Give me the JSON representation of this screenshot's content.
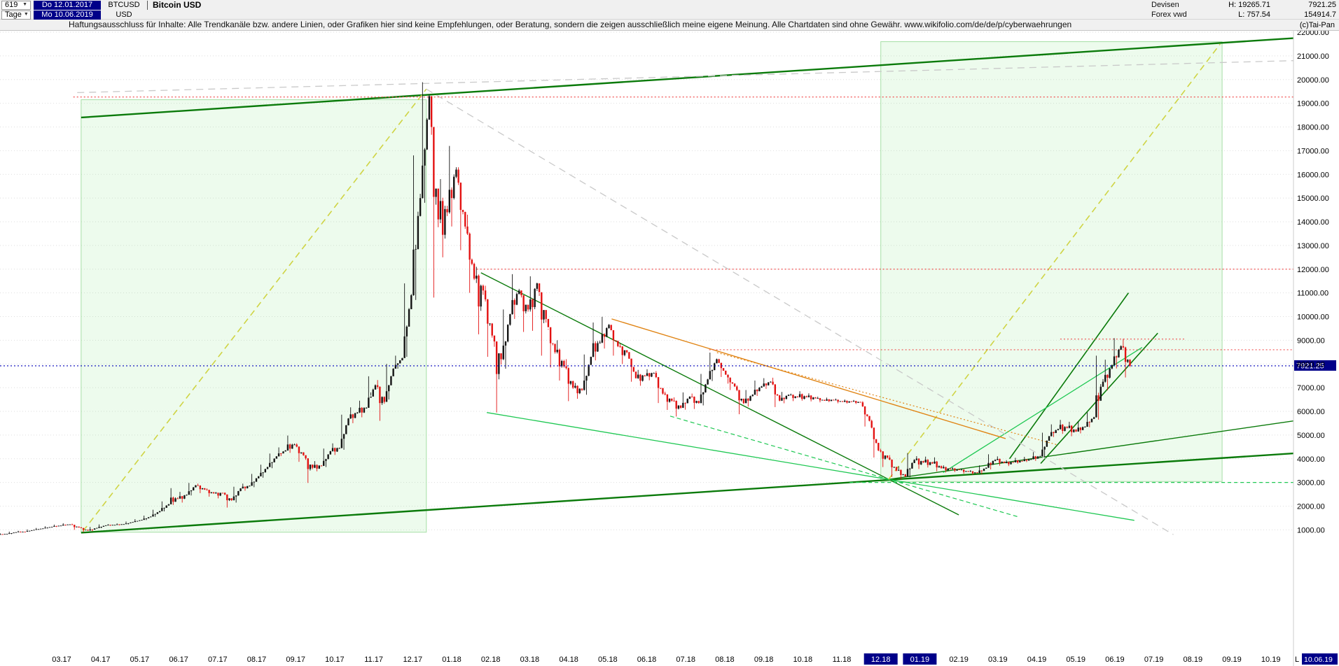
{
  "icons": {
    "dropdown_caret": "▼"
  },
  "header": {
    "bars_count": "619",
    "period": "Tage",
    "first_date": "Do 12.01.2017",
    "last_date": "Mo 10.06.2019",
    "symbol": "BTCUSD",
    "currency": "USD",
    "title": "Bitcoin USD",
    "category": "Devisen",
    "source": "Forex vwd",
    "high": "H: 19265.71",
    "low": "L: 757.54",
    "last_price": "7921.25",
    "turnover": "154914.7",
    "copyright": "(c)Tai-Pan"
  },
  "disclaimer": "Haftungsausschluss für Inhalte: Alle Trendkanäle bzw. andere Linien, oder Grafiken hier sind keine Empfehlungen, oder Beratung, sondern die zeigen ausschließlich meine eigene Meinung. Alle Chartdaten sind ohne Gewähr.  www.wikifolio.com/de/de/p/cyberwaehrungen",
  "bottom_right_marker": {
    "label": "L",
    "date": "10.06.19"
  },
  "chart_data": {
    "type": "candlestick",
    "title": "Bitcoin USD",
    "symbol": "BTCUSD",
    "timeframe": "Tage",
    "visible_bars": 619,
    "date_range": [
      "12.01.2017",
      "10.06.2019"
    ],
    "period_high": 19265.71,
    "period_low": 757.54,
    "last_price": 7921.25,
    "y_axis": {
      "min": 1000,
      "max": 22000,
      "step": 1000,
      "side": "right",
      "grid": true
    },
    "x_ticks": [
      "03.17",
      "04.17",
      "05.17",
      "06.17",
      "07.17",
      "08.17",
      "09.17",
      "10.17",
      "11.17",
      "12.17",
      "01.18",
      "02.18",
      "03.18",
      "04.18",
      "05.18",
      "06.18",
      "07.18",
      "08.18",
      "09.18",
      "10.18",
      "11.18",
      "12.18",
      "01.19",
      "02.19",
      "03.19",
      "04.19",
      "05.19",
      "06.19",
      "07.19",
      "08.19",
      "09.19",
      "10.19"
    ],
    "highlighted_x_ticks": [
      "12.18",
      "01.19"
    ],
    "colors": {
      "up": "#141414",
      "down": "#e31212",
      "last_price": "#0000bb",
      "badge_bg": "#000089",
      "badge_text": "#ffffff",
      "channel": "#0a7a0a",
      "bright_green": "#1fc853",
      "yellow_dashed": "#cfd444",
      "gray_dashed": "#c9c9c9",
      "orange": "#e08414",
      "red_dotted": "#f05050",
      "box_fill": "rgba(148,230,148,0.17)",
      "box_border": "#a6dfa6"
    },
    "weekly_series": {
      "m_start": 0.37,
      "m_step": 0.2303,
      "note": "m = months since 01.01.2017; entries [close, high, low] USD, weekly values estimated from chart",
      "bars": [
        [
          800,
          830,
          758
        ],
        [
          830,
          850,
          790
        ],
        [
          900,
          925,
          820
        ],
        [
          920,
          960,
          890
        ],
        [
          1000,
          1020,
          940
        ],
        [
          1060,
          1080,
          1010
        ],
        [
          1130,
          1150,
          1060
        ],
        [
          1180,
          1220,
          1120
        ],
        [
          1230,
          1280,
          1180
        ],
        [
          1100,
          1260,
          1000
        ],
        [
          970,
          1120,
          900
        ],
        [
          1080,
          1120,
          940
        ],
        [
          1190,
          1230,
          1070
        ],
        [
          1210,
          1240,
          1170
        ],
        [
          1240,
          1270,
          1190
        ],
        [
          1330,
          1350,
          1230
        ],
        [
          1420,
          1450,
          1350
        ],
        [
          1560,
          1600,
          1410
        ],
        [
          1790,
          1850,
          1550
        ],
        [
          2080,
          2200,
          1780
        ],
        [
          2320,
          2760,
          2050
        ],
        [
          2480,
          2600,
          2150
        ],
        [
          2880,
          2980,
          2450
        ],
        [
          2700,
          2950,
          2550
        ],
        [
          2540,
          2750,
          2400
        ],
        [
          2560,
          2600,
          2330
        ],
        [
          2250,
          2580,
          1940
        ],
        [
          2750,
          2820,
          2150
        ],
        [
          2860,
          2950,
          2650
        ],
        [
          3260,
          3360,
          2800
        ],
        [
          3650,
          3750,
          3200
        ],
        [
          4100,
          4220,
          3600
        ],
        [
          4350,
          4480,
          4110
        ],
        [
          4600,
          4980,
          4250
        ],
        [
          4150,
          4650,
          3870
        ],
        [
          3620,
          4120,
          2980
        ],
        [
          3700,
          3900,
          3470
        ],
        [
          4320,
          4430,
          3650
        ],
        [
          4450,
          4650,
          4160
        ],
        [
          5700,
          5860,
          4380
        ],
        [
          5950,
          6170,
          5500
        ],
        [
          6150,
          6450,
          5750
        ],
        [
          7100,
          7480,
          6800
        ],
        [
          6400,
          7320,
          5600
        ],
        [
          7800,
          8000,
          6500
        ],
        [
          8250,
          8350,
          7800
        ],
        [
          10900,
          11400,
          8300
        ],
        [
          15000,
          16800,
          10700
        ],
        [
          19300,
          19891,
          14800
        ],
        [
          14100,
          19300,
          10800
        ],
        [
          14400,
          15800,
          12500
        ],
        [
          16200,
          17200,
          13800
        ],
        [
          13800,
          16300,
          12800
        ],
        [
          11600,
          14300,
          11000
        ],
        [
          11100,
          12100,
          9250
        ],
        [
          9200,
          11300,
          8300
        ],
        [
          8200,
          9100,
          5950
        ],
        [
          10100,
          10300,
          7800
        ],
        [
          11100,
          11790,
          9900
        ],
        [
          10300,
          11100,
          9350
        ],
        [
          11400,
          11700,
          9400
        ],
        [
          9900,
          11000,
          8350
        ],
        [
          8500,
          9450,
          7850
        ],
        [
          7900,
          9000,
          7300
        ],
        [
          7000,
          8200,
          6430
        ],
        [
          6900,
          7200,
          6530
        ],
        [
          8300,
          8400,
          6700
        ],
        [
          8900,
          9750,
          8150
        ],
        [
          9650,
          9990,
          8650
        ],
        [
          8750,
          9400,
          8350
        ],
        [
          8500,
          8850,
          8000
        ],
        [
          7400,
          8500,
          7250
        ],
        [
          7500,
          7750,
          7080
        ],
        [
          7620,
          7780,
          7310
        ],
        [
          6750,
          7700,
          6350
        ],
        [
          6450,
          6830,
          6060
        ],
        [
          6150,
          6590,
          5780
        ],
        [
          6620,
          6800,
          6070
        ],
        [
          6350,
          6750,
          6100
        ],
        [
          7350,
          7580,
          6250
        ],
        [
          8200,
          8480,
          7280
        ],
        [
          7550,
          8220,
          7450
        ],
        [
          7050,
          7170,
          6900
        ],
        [
          6350,
          7100,
          5880
        ],
        [
          6700,
          6900,
          6200
        ],
        [
          7050,
          7300,
          6650
        ],
        [
          7250,
          7400,
          6950
        ],
        [
          6450,
          7420,
          6180
        ],
        [
          6700,
          6820,
          6340
        ],
        [
          6600,
          6750,
          6430
        ],
        [
          6600,
          6850,
          6450
        ],
        [
          6550,
          6760,
          6420
        ],
        [
          6450,
          6620,
          6380
        ],
        [
          6480,
          6580,
          6390
        ],
        [
          6400,
          6540,
          6340
        ],
        [
          6410,
          6500,
          6330
        ],
        [
          6380,
          6480,
          6310
        ],
        [
          5600,
          6430,
          5360
        ],
        [
          4350,
          5650,
          4050
        ],
        [
          4050,
          4420,
          3650
        ],
        [
          3500,
          4150,
          3230
        ],
        [
          3250,
          3680,
          3130
        ],
        [
          3950,
          4240,
          3220
        ],
        [
          3850,
          4110,
          3570
        ],
        [
          3800,
          4090,
          3630
        ],
        [
          3600,
          4060,
          3470
        ],
        [
          3560,
          3720,
          3420
        ],
        [
          3530,
          3640,
          3440
        ],
        [
          3450,
          3590,
          3370
        ],
        [
          3400,
          3520,
          3330
        ],
        [
          3620,
          3720,
          3350
        ],
        [
          3950,
          4190,
          3550
        ],
        [
          3820,
          4100,
          3710
        ],
        [
          3850,
          3940,
          3690
        ],
        [
          3900,
          4040,
          3790
        ],
        [
          3980,
          4080,
          3860
        ],
        [
          4100,
          4280,
          3910
        ],
        [
          4950,
          5100,
          4060
        ],
        [
          5250,
          5450,
          4920
        ],
        [
          5300,
          5640,
          5050
        ],
        [
          5150,
          5560,
          4950
        ],
        [
          5350,
          5580,
          5070
        ],
        [
          5750,
          5960,
          5330
        ],
        [
          7250,
          8350,
          5650
        ],
        [
          7950,
          8180,
          6890
        ],
        [
          8750,
          9090,
          7810
        ],
        [
          7921.25,
          9060,
          7430
        ]
      ]
    },
    "overlays": {
      "boxes": [
        {
          "m1": 2.5,
          "m2": 11.35,
          "v1": 900,
          "v2": 19150
        },
        {
          "m1": 23.0,
          "m2": 31.75,
          "v1": 3040,
          "v2": 21600
        }
      ],
      "trend_lines": [
        {
          "name": "upper-channel",
          "m1": 2.5,
          "v1": 18400,
          "m2": 33.6,
          "v2": 21750,
          "color": "channel",
          "width": 2.4
        },
        {
          "name": "lower-channel",
          "m1": 2.5,
          "v1": 880,
          "m2": 33.6,
          "v2": 4230,
          "color": "channel",
          "width": 2.4
        },
        {
          "name": "pivot-rising",
          "m1": 23.2,
          "v1": 3130,
          "m2": 33.6,
          "v2": 5600,
          "color": "channel",
          "width": 1.4
        },
        {
          "name": "downtrend-2018",
          "m1": 12.75,
          "v1": 11850,
          "m2": 25.0,
          "v2": 1630,
          "color": "channel",
          "width": 1.4
        },
        {
          "name": "rally-support-1",
          "m1": 26.3,
          "v1": 4000,
          "m2": 29.35,
          "v2": 11000,
          "color": "channel",
          "width": 1.6
        },
        {
          "name": "rally-support-2",
          "m1": 27.1,
          "v1": 3800,
          "m2": 30.1,
          "v2": 9300,
          "color": "channel",
          "width": 1.6
        },
        {
          "name": "rally-support-3",
          "m1": 24.6,
          "v1": 3420,
          "m2": 29.7,
          "v2": 8700,
          "color": "bright_green",
          "width": 1.3
        },
        {
          "name": "wedge-support",
          "m1": 12.9,
          "v1": 5950,
          "m2": 29.5,
          "v2": 1400,
          "color": "bright_green",
          "width": 1.3
        },
        {
          "name": "wedge-support-dashed",
          "m1": 17.6,
          "v1": 5800,
          "m2": 26.5,
          "v2": 1560,
          "color": "bright_green",
          "width": 1.2,
          "dash": "6 4"
        },
        {
          "name": "rally-trendline-2017",
          "m1": 2.55,
          "v1": 950,
          "m2": 11.35,
          "v2": 19600,
          "color": "yellow_dashed",
          "width": 1.6,
          "dash": "9 6"
        },
        {
          "name": "rally-projection-2019",
          "m1": 23.2,
          "v1": 3130,
          "m2": 31.7,
          "v2": 21500,
          "color": "yellow_dashed",
          "width": 1.6,
          "dash": "9 6"
        },
        {
          "name": "gray-upper",
          "m1": 2.4,
          "v1": 19450,
          "m2": 33.6,
          "v2": 20800,
          "color": "gray_dashed",
          "width": 1.3,
          "dash": "10 7"
        },
        {
          "name": "gray-long-downtrend",
          "m1": 11.35,
          "v1": 19600,
          "m2": 30.5,
          "v2": 800,
          "color": "gray_dashed",
          "width": 1.3,
          "dash": "10 7"
        },
        {
          "name": "orange-downtrend",
          "m1": 16.1,
          "v1": 9900,
          "m2": 26.2,
          "v2": 4850,
          "color": "orange",
          "width": 1.4
        },
        {
          "name": "orange-downtrend-dotted",
          "m1": 18.8,
          "v1": 8480,
          "m2": 27.5,
          "v2": 4600,
          "color": "orange",
          "width": 1.2,
          "dash": "2 3"
        }
      ],
      "h_lines": [
        {
          "name": "resistance-19265",
          "v": 19265.71,
          "m1": 2.3,
          "m2": 33.6,
          "color": "red_dotted",
          "dash": "2 3",
          "width": 1.2
        },
        {
          "name": "resistance-12000",
          "v": 12000,
          "m1": 12.55,
          "m2": 33.6,
          "color": "red_dotted",
          "dash": "2 3",
          "width": 1.2
        },
        {
          "name": "resistance-8600",
          "v": 8600,
          "m1": 18.6,
          "m2": 33.6,
          "color": "red_dotted",
          "dash": "2 3",
          "width": 1.2
        },
        {
          "name": "resistance-9050",
          "v": 9050,
          "m1": 27.6,
          "m2": 30.8,
          "color": "red_dotted",
          "dash": "2 3",
          "width": 1.2
        },
        {
          "name": "support-3000",
          "v": 3000,
          "m1": 22.2,
          "m2": 33.6,
          "color": "bright_green",
          "dash": "5 4",
          "width": 1.2
        }
      ],
      "last_price_line": {
        "v": 7921.25,
        "color": "last_price",
        "dash": "2 3"
      }
    }
  }
}
